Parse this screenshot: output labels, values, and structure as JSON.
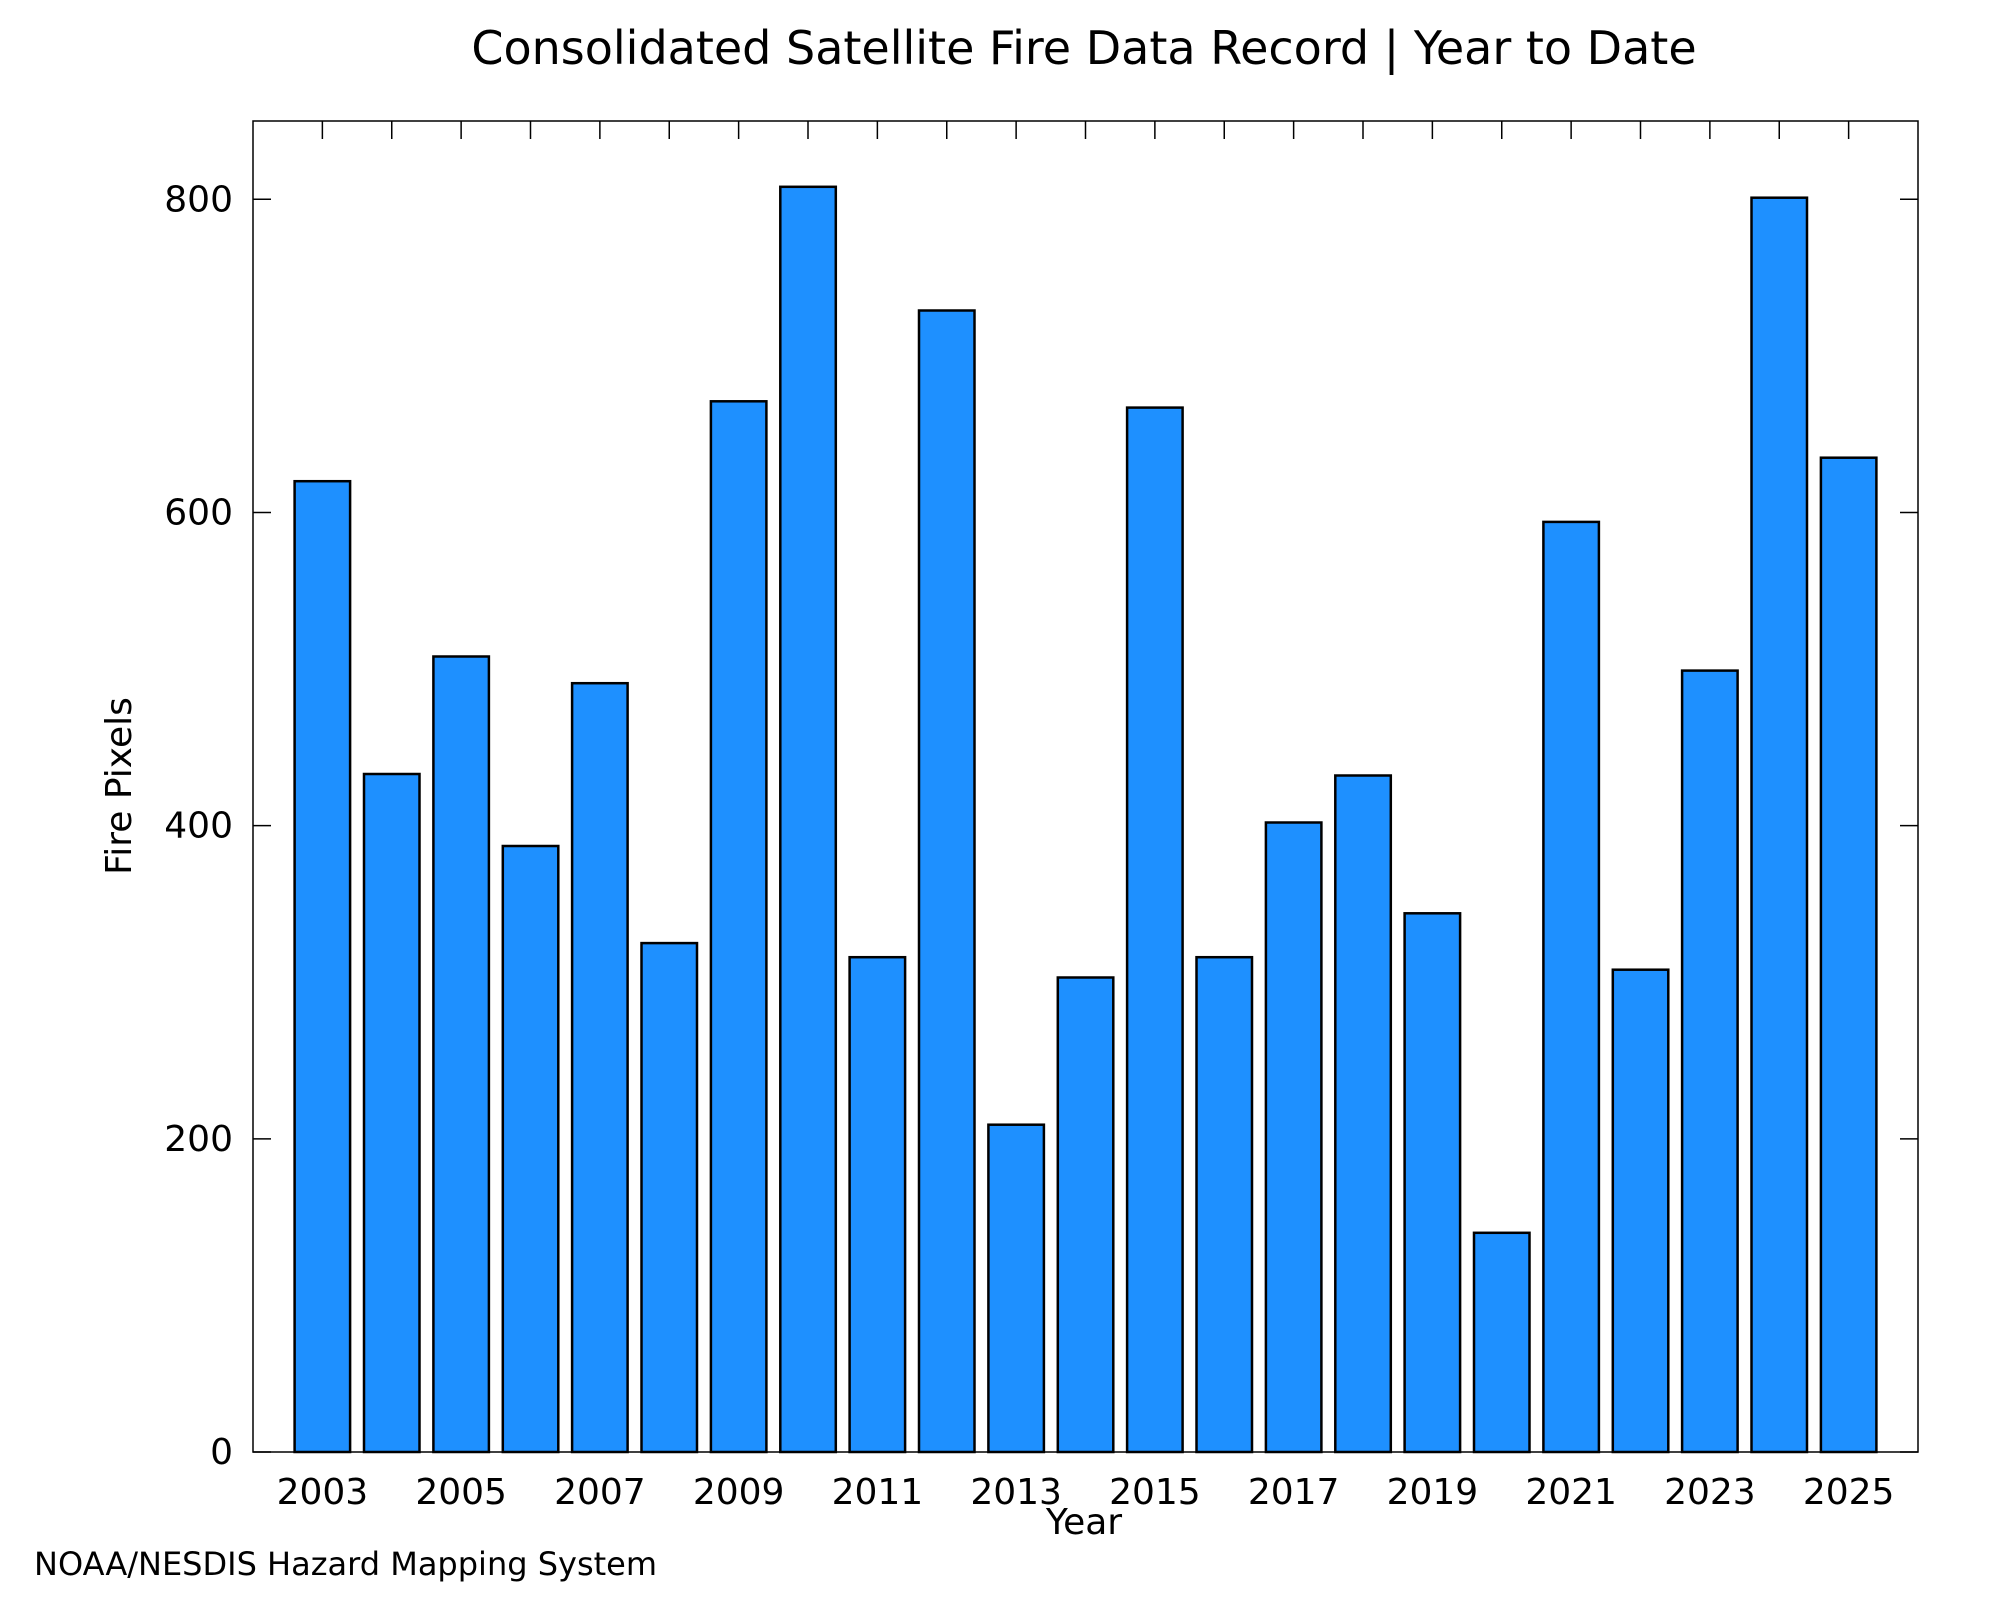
{
  "colors": {
    "bar_fill": "#1e90ff",
    "bar_stroke": "#000000",
    "credit_text": "#808080"
  },
  "credit": "NOAA/NESDIS Hazard Mapping System",
  "chart_data": {
    "type": "bar",
    "title": "Consolidated Satellite Fire Data Record | Year to Date",
    "xlabel": "Year",
    "ylabel": "Fire Pixels",
    "ylim": [
      0,
      850
    ],
    "yticks": [
      "0",
      "200",
      "400",
      "600",
      "800"
    ],
    "xtick_labels": [
      "2003",
      "2005",
      "2007",
      "2009",
      "2011",
      "2013",
      "2015",
      "2017",
      "2019",
      "2021",
      "2023",
      "2025"
    ],
    "grid": false,
    "legend": "none",
    "categories": [
      "2003",
      "2004",
      "2005",
      "2006",
      "2007",
      "2008",
      "2009",
      "2010",
      "2011",
      "2012",
      "2013",
      "2014",
      "2015",
      "2016",
      "2017",
      "2018",
      "2019",
      "2020",
      "2021",
      "2022",
      "2023",
      "2024",
      "2025"
    ],
    "values": [
      620,
      433,
      508,
      387,
      491,
      325,
      671,
      808,
      316,
      729,
      209,
      303,
      667,
      316,
      402,
      432,
      344,
      140,
      594,
      308,
      499,
      801,
      635
    ]
  }
}
